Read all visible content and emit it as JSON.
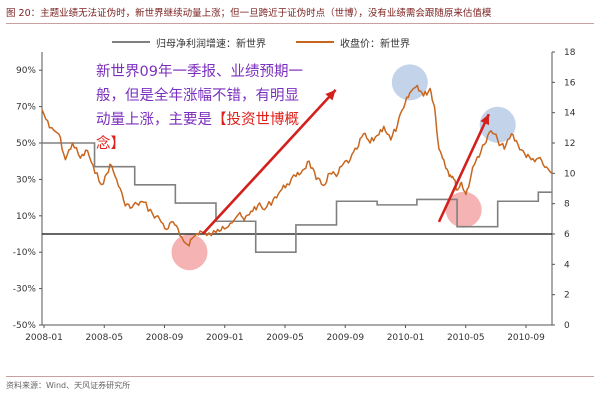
{
  "figure": {
    "title": "图 20：主题业绩无法证伪时，新世界继续动量上涨；但一旦跨近于证伪时点（世博），没有业绩需会跟随原来估值模",
    "source": "资料来源：Wind、天风证券研究所",
    "annotation": {
      "text": "新世界09年一季报、业绩预期一般，但是全年涨幅不错，有明显动量上涨，主要是",
      "highlight": "【投资世博概念】"
    }
  },
  "chart_data": {
    "type": "line",
    "x_ticks": [
      "2008-01",
      "2008-05",
      "2008-09",
      "2009-01",
      "2009-05",
      "2009-09",
      "2010-01",
      "2010-05",
      "2010-09"
    ],
    "x_range": [
      "2007-12-03",
      "2011-01-31"
    ],
    "left_axis": {
      "ticks": [
        "90%",
        "70%",
        "50%",
        "30%",
        "10%",
        "-10%",
        "-30%",
        "-50%"
      ],
      "range": [
        -50,
        100
      ]
    },
    "right_axis": {
      "ticks": [
        "18",
        "16",
        "14",
        "12",
        "10",
        "8",
        "6",
        "4",
        "2",
        "0"
      ],
      "range": [
        0,
        18
      ]
    },
    "legend_placement": "top",
    "series": [
      {
        "name": "归母净利润增速：新世界",
        "axis": "left",
        "color": "#808080",
        "style": "step",
        "points": [
          [
            "2007-12-03",
            50
          ],
          [
            "2008-03-31",
            37
          ],
          [
            "2008-06-30",
            27
          ],
          [
            "2008-09-30",
            17
          ],
          [
            "2008-12-31",
            7
          ],
          [
            "2009-03-31",
            -10
          ],
          [
            "2009-06-30",
            5
          ],
          [
            "2009-09-30",
            18
          ],
          [
            "2009-12-31",
            16
          ],
          [
            "2010-03-31",
            19
          ],
          [
            "2010-06-30",
            4
          ],
          [
            "2010-09-30",
            18
          ],
          [
            "2010-12-31",
            23
          ],
          [
            "2011-01-31",
            23
          ]
        ]
      },
      {
        "name": "收盘价：新世界",
        "axis": "right",
        "color": "#c8661e",
        "style": "line",
        "points": [
          [
            "2007-12-03",
            14.2
          ],
          [
            "2007-12-20",
            13.0
          ],
          [
            "2008-01-10",
            12.6
          ],
          [
            "2008-01-25",
            10.9
          ],
          [
            "2008-02-10",
            12.0
          ],
          [
            "2008-02-28",
            11.0
          ],
          [
            "2008-03-15",
            11.5
          ],
          [
            "2008-04-01",
            10.0
          ],
          [
            "2008-04-20",
            9.3
          ],
          [
            "2008-05-05",
            10.6
          ],
          [
            "2008-05-20",
            9.6
          ],
          [
            "2008-06-05",
            8.2
          ],
          [
            "2008-06-20",
            7.7
          ],
          [
            "2008-07-05",
            8.0
          ],
          [
            "2008-07-20",
            8.1
          ],
          [
            "2008-08-10",
            7.3
          ],
          [
            "2008-08-25",
            7.0
          ],
          [
            "2008-09-10",
            6.3
          ],
          [
            "2008-09-25",
            6.8
          ],
          [
            "2008-10-10",
            5.9
          ],
          [
            "2008-10-28",
            5.3
          ],
          [
            "2008-11-10",
            5.8
          ],
          [
            "2008-11-25",
            6.2
          ],
          [
            "2008-12-10",
            5.9
          ],
          [
            "2008-12-31",
            6.1
          ],
          [
            "2009-01-15",
            6.5
          ],
          [
            "2009-02-01",
            6.7
          ],
          [
            "2009-02-20",
            7.3
          ],
          [
            "2009-03-05",
            6.9
          ],
          [
            "2009-03-20",
            7.5
          ],
          [
            "2009-04-05",
            7.9
          ],
          [
            "2009-04-20",
            7.6
          ],
          [
            "2009-05-10",
            8.3
          ],
          [
            "2009-05-25",
            8.8
          ],
          [
            "2009-06-10",
            9.3
          ],
          [
            "2009-06-30",
            9.8
          ],
          [
            "2009-07-15",
            10.2
          ],
          [
            "2009-07-30",
            10.8
          ],
          [
            "2009-08-15",
            9.6
          ],
          [
            "2009-08-31",
            9.2
          ],
          [
            "2009-09-15",
            10.0
          ],
          [
            "2009-09-30",
            9.8
          ],
          [
            "2009-10-15",
            10.6
          ],
          [
            "2009-10-31",
            10.9
          ],
          [
            "2009-11-15",
            11.6
          ],
          [
            "2009-11-30",
            12.6
          ],
          [
            "2009-12-15",
            12.0
          ],
          [
            "2009-12-31",
            12.5
          ],
          [
            "2010-01-15",
            13.1
          ],
          [
            "2010-01-31",
            12.2
          ],
          [
            "2010-02-15",
            13.2
          ],
          [
            "2010-03-01",
            14.3
          ],
          [
            "2010-03-15",
            15.3
          ],
          [
            "2010-04-01",
            15.8
          ],
          [
            "2010-04-15",
            15.1
          ],
          [
            "2010-04-30",
            15.6
          ],
          [
            "2010-05-10",
            14.4
          ],
          [
            "2010-05-20",
            11.6
          ],
          [
            "2010-05-31",
            10.9
          ],
          [
            "2010-06-10",
            10.1
          ],
          [
            "2010-06-20",
            9.8
          ],
          [
            "2010-07-01",
            8.9
          ],
          [
            "2010-07-10",
            9.4
          ],
          [
            "2010-07-20",
            8.6
          ],
          [
            "2010-08-01",
            9.9
          ],
          [
            "2010-08-15",
            11.1
          ],
          [
            "2010-08-31",
            11.9
          ],
          [
            "2010-09-15",
            12.8
          ],
          [
            "2010-09-30",
            12.2
          ],
          [
            "2010-10-15",
            11.6
          ],
          [
            "2010-10-31",
            12.6
          ],
          [
            "2010-11-15",
            11.9
          ],
          [
            "2010-11-30",
            11.3
          ],
          [
            "2010-12-15",
            10.9
          ],
          [
            "2010-12-31",
            11.0
          ],
          [
            "2011-01-15",
            10.4
          ],
          [
            "2011-01-31",
            10.0
          ]
        ]
      }
    ],
    "arrows": [
      {
        "color": "#d4201c",
        "from": [
          "2008-12-01",
          6.0
        ],
        "to": [
          "2009-09-28",
          15.5
        ]
      },
      {
        "color": "#d4201c",
        "from": [
          "2010-05-20",
          6.8
        ],
        "to": [
          "2010-09-10",
          13.9
        ]
      }
    ],
    "highlights": [
      {
        "color": "#f4a6a6",
        "at": [
          "2008-11-01",
          4.8
        ]
      },
      {
        "color": "#b7cbe6",
        "at": [
          "2010-03-15",
          16.0
        ]
      },
      {
        "color": "#f4a6a6",
        "at": [
          "2010-07-15",
          7.6
        ]
      },
      {
        "color": "#b7cbe6",
        "at": [
          "2010-09-30",
          13.2
        ]
      }
    ]
  }
}
